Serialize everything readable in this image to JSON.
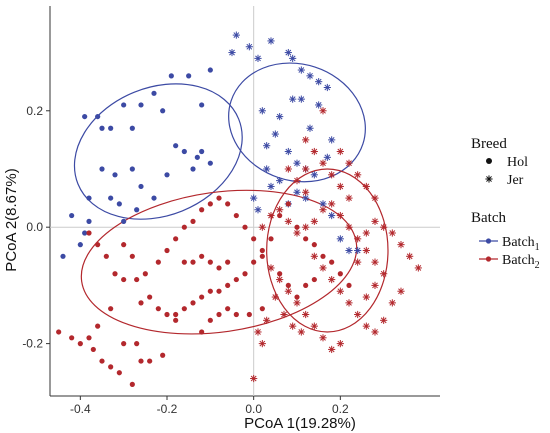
{
  "chart_data": {
    "type": "scatter",
    "title": "",
    "xlabel": "PCoA 1(19.28%)",
    "ylabel": "PCoA 2(8.67%)",
    "xlim": [
      -0.47,
      0.43
    ],
    "ylim": [
      -0.29,
      0.38
    ],
    "xticks": [
      -0.4,
      -0.2,
      0.0,
      0.2
    ],
    "yticks": [
      -0.2,
      0.0,
      0.2
    ],
    "xtick_labels": [
      "-0.4",
      "-0.2",
      "0.0",
      "0.2"
    ],
    "ytick_labels": [
      "-0.2",
      "0.0",
      "0.2"
    ],
    "grid": false,
    "reference_lines": {
      "x": 0.0,
      "y": 0.0
    },
    "legend_breed": {
      "title": "Breed",
      "items": [
        {
          "label": "Hol",
          "shape": "circle"
        },
        {
          "label": "Jer",
          "shape": "asterisk"
        }
      ]
    },
    "legend_batch": {
      "title": "Batch",
      "items": [
        {
          "label": "Batch",
          "subscript": "1",
          "color": "#3c4aa4"
        },
        {
          "label": "Batch",
          "subscript": "2",
          "color": "#b3282d"
        }
      ]
    },
    "series": [
      {
        "batch": "Batch1",
        "breed": "Hol",
        "color": "#3c4aa4",
        "points": [
          [
            -0.36,
            0.19
          ],
          [
            -0.39,
            0.19
          ],
          [
            -0.35,
            0.17
          ],
          [
            -0.33,
            0.17
          ],
          [
            -0.3,
            0.21
          ],
          [
            -0.28,
            0.17
          ],
          [
            -0.26,
            0.21
          ],
          [
            -0.23,
            0.23
          ],
          [
            -0.21,
            0.2
          ],
          [
            -0.19,
            0.26
          ],
          [
            -0.15,
            0.26
          ],
          [
            -0.12,
            0.21
          ],
          [
            -0.1,
            0.27
          ],
          [
            -0.18,
            0.14
          ],
          [
            -0.16,
            0.13
          ],
          [
            -0.13,
            0.12
          ],
          [
            -0.14,
            0.1
          ],
          [
            -0.28,
            0.1
          ],
          [
            -0.35,
            0.1
          ],
          [
            -0.32,
            0.09
          ],
          [
            -0.26,
            0.07
          ],
          [
            -0.23,
            0.05
          ],
          [
            -0.33,
            0.05
          ],
          [
            -0.31,
            0.04
          ],
          [
            -0.27,
            0.03
          ],
          [
            -0.38,
            0.05
          ],
          [
            -0.42,
            0.02
          ],
          [
            -0.38,
            0.01
          ],
          [
            -0.39,
            -0.01
          ],
          [
            -0.4,
            -0.03
          ],
          [
            -0.44,
            -0.05
          ],
          [
            -0.1,
            0.11
          ],
          [
            -0.12,
            0.13
          ],
          [
            -0.2,
            0.09
          ],
          [
            -0.3,
            0.01
          ]
        ]
      },
      {
        "batch": "Batch1",
        "breed": "Jer",
        "color": "#3c4aa4",
        "points": [
          [
            -0.05,
            0.3
          ],
          [
            -0.04,
            0.33
          ],
          [
            -0.01,
            0.31
          ],
          [
            0.01,
            0.29
          ],
          [
            0.04,
            0.32
          ],
          [
            0.08,
            0.3
          ],
          [
            0.09,
            0.29
          ],
          [
            0.11,
            0.27
          ],
          [
            0.13,
            0.26
          ],
          [
            0.15,
            0.25
          ],
          [
            0.17,
            0.24
          ],
          [
            0.09,
            0.22
          ],
          [
            0.11,
            0.22
          ],
          [
            0.15,
            0.21
          ],
          [
            0.02,
            0.2
          ],
          [
            0.06,
            0.19
          ],
          [
            0.05,
            0.16
          ],
          [
            0.03,
            0.14
          ],
          [
            0.13,
            0.17
          ],
          [
            0.18,
            0.15
          ],
          [
            0.17,
            0.12
          ],
          [
            0.08,
            0.13
          ],
          [
            0.1,
            0.11
          ],
          [
            0.12,
            0.1
          ],
          [
            0.14,
            0.09
          ],
          [
            0.06,
            0.08
          ],
          [
            0.04,
            0.07
          ],
          [
            0.1,
            0.06
          ],
          [
            0.12,
            0.05
          ],
          [
            0.08,
            0.04
          ],
          [
            0.16,
            0.04
          ],
          [
            0.18,
            0.02
          ],
          [
            0.2,
            -0.02
          ],
          [
            0.22,
            -0.04
          ],
          [
            0.24,
            -0.04
          ],
          [
            -0.0,
            0.05
          ],
          [
            0.01,
            0.03
          ],
          [
            0.03,
            0.1
          ]
        ]
      },
      {
        "batch": "Batch2",
        "breed": "Hol",
        "color": "#b3282d",
        "points": [
          [
            -0.38,
            -0.01
          ],
          [
            -0.36,
            -0.03
          ],
          [
            -0.34,
            -0.05
          ],
          [
            -0.32,
            -0.08
          ],
          [
            -0.3,
            -0.09
          ],
          [
            -0.27,
            -0.09
          ],
          [
            -0.25,
            -0.08
          ],
          [
            -0.22,
            -0.06
          ],
          [
            -0.2,
            -0.04
          ],
          [
            -0.18,
            -0.02
          ],
          [
            -0.16,
            -0.0
          ],
          [
            -0.14,
            0.01
          ],
          [
            -0.12,
            0.03
          ],
          [
            -0.1,
            0.04
          ],
          [
            -0.08,
            0.05
          ],
          [
            -0.06,
            0.04
          ],
          [
            -0.04,
            0.02
          ],
          [
            -0.02,
            -0.0
          ],
          [
            0.0,
            -0.02
          ],
          [
            0.02,
            -0.04
          ],
          [
            -0.26,
            -0.13
          ],
          [
            -0.24,
            -0.12
          ],
          [
            -0.22,
            -0.14
          ],
          [
            -0.2,
            -0.15
          ],
          [
            -0.18,
            -0.15
          ],
          [
            -0.16,
            -0.14
          ],
          [
            -0.14,
            -0.13
          ],
          [
            -0.12,
            -0.12
          ],
          [
            -0.1,
            -0.11
          ],
          [
            -0.08,
            -0.11
          ],
          [
            -0.06,
            -0.1
          ],
          [
            -0.04,
            -0.09
          ],
          [
            -0.02,
            -0.08
          ],
          [
            0.0,
            -0.06
          ],
          [
            0.02,
            -0.05
          ],
          [
            -0.28,
            -0.05
          ],
          [
            -0.3,
            -0.03
          ],
          [
            -0.33,
            -0.14
          ],
          [
            -0.36,
            -0.17
          ],
          [
            -0.38,
            -0.19
          ],
          [
            -0.3,
            -0.2
          ],
          [
            -0.27,
            -0.2
          ],
          [
            -0.35,
            -0.23
          ],
          [
            -0.31,
            -0.25
          ],
          [
            -0.26,
            -0.23
          ],
          [
            -0.24,
            -0.23
          ],
          [
            -0.28,
            -0.27
          ],
          [
            -0.21,
            -0.22
          ],
          [
            -0.18,
            -0.16
          ],
          [
            -0.12,
            -0.18
          ],
          [
            -0.1,
            -0.16
          ],
          [
            -0.08,
            -0.15
          ],
          [
            -0.06,
            -0.14
          ],
          [
            -0.04,
            -0.15
          ],
          [
            -0.01,
            -0.15
          ],
          [
            0.02,
            -0.14
          ],
          [
            -0.16,
            -0.06
          ],
          [
            -0.14,
            -0.06
          ],
          [
            -0.12,
            -0.05
          ],
          [
            -0.1,
            -0.06
          ],
          [
            -0.08,
            -0.07
          ],
          [
            -0.06,
            -0.06
          ],
          [
            0.04,
            -0.02
          ],
          [
            0.06,
            0.02
          ],
          [
            0.08,
            0.04
          ],
          [
            0.1,
            0.0
          ],
          [
            0.12,
            -0.02
          ],
          [
            0.14,
            -0.03
          ],
          [
            0.16,
            -0.05
          ],
          [
            0.18,
            -0.06
          ],
          [
            0.06,
            -0.08
          ],
          [
            0.08,
            -0.1
          ],
          [
            0.1,
            -0.12
          ],
          [
            0.12,
            -0.1
          ],
          [
            0.14,
            -0.09
          ],
          [
            0.2,
            -0.08
          ],
          [
            0.22,
            -0.1
          ],
          [
            -0.45,
            -0.18
          ],
          [
            -0.42,
            -0.19
          ],
          [
            -0.4,
            -0.2
          ],
          [
            -0.37,
            -0.21
          ],
          [
            -0.33,
            -0.24
          ]
        ]
      },
      {
        "batch": "Batch2",
        "breed": "Jer",
        "color": "#b3282d",
        "points": [
          [
            0.02,
            0.0
          ],
          [
            0.04,
            0.02
          ],
          [
            0.06,
            0.03
          ],
          [
            0.08,
            0.01
          ],
          [
            0.1,
            -0.01
          ],
          [
            0.12,
            -0.0
          ],
          [
            0.14,
            0.01
          ],
          [
            0.16,
            0.03
          ],
          [
            0.18,
            0.04
          ],
          [
            0.2,
            0.02
          ],
          [
            0.22,
            0.0
          ],
          [
            0.24,
            -0.02
          ],
          [
            0.26,
            -0.01
          ],
          [
            0.28,
            0.01
          ],
          [
            0.3,
            0.0
          ],
          [
            0.32,
            -0.01
          ],
          [
            0.34,
            -0.03
          ],
          [
            0.36,
            -0.05
          ],
          [
            0.38,
            -0.07
          ],
          [
            0.22,
            0.05
          ],
          [
            0.2,
            0.07
          ],
          [
            0.18,
            0.09
          ],
          [
            0.16,
            0.11
          ],
          [
            0.14,
            0.13
          ],
          [
            0.12,
            0.15
          ],
          [
            0.2,
            0.13
          ],
          [
            0.22,
            0.11
          ],
          [
            0.24,
            0.09
          ],
          [
            0.26,
            0.07
          ],
          [
            0.28,
            0.05
          ],
          [
            0.14,
            -0.05
          ],
          [
            0.16,
            -0.07
          ],
          [
            0.18,
            -0.09
          ],
          [
            0.2,
            -0.11
          ],
          [
            0.22,
            -0.13
          ],
          [
            0.24,
            -0.15
          ],
          [
            0.26,
            -0.17
          ],
          [
            0.28,
            -0.18
          ],
          [
            0.3,
            -0.16
          ],
          [
            0.32,
            -0.13
          ],
          [
            0.34,
            -0.11
          ],
          [
            0.04,
            -0.07
          ],
          [
            0.06,
            -0.09
          ],
          [
            0.08,
            -0.11
          ],
          [
            0.1,
            -0.13
          ],
          [
            0.12,
            -0.15
          ],
          [
            0.14,
            -0.17
          ],
          [
            0.16,
            -0.19
          ],
          [
            0.18,
            -0.21
          ],
          [
            0.2,
            -0.2
          ],
          [
            0.05,
            -0.12
          ],
          [
            0.07,
            -0.15
          ],
          [
            0.09,
            -0.17
          ],
          [
            0.11,
            -0.18
          ],
          [
            0.03,
            -0.16
          ],
          [
            0.01,
            -0.18
          ],
          [
            0.0,
            -0.26
          ],
          [
            0.02,
            -0.2
          ],
          [
            0.26,
            -0.12
          ],
          [
            0.28,
            -0.1
          ],
          [
            0.3,
            -0.08
          ],
          [
            0.24,
            -0.06
          ],
          [
            0.26,
            -0.04
          ],
          [
            0.28,
            -0.06
          ],
          [
            0.12,
            0.06
          ],
          [
            0.1,
            0.08
          ],
          [
            0.08,
            0.1
          ],
          [
            0.16,
            0.2
          ],
          [
            0.12,
            0.1
          ]
        ]
      }
    ],
    "ellipses": [
      {
        "batch": "Batch1",
        "breed": "Hol",
        "color": "#3c4aa4",
        "center": [
          -0.22,
          0.13
        ],
        "semi_axes": [
          0.2,
          0.11
        ],
        "angle_deg": 22
      },
      {
        "batch": "Batch1",
        "breed": "Jer",
        "color": "#3c4aa4",
        "center": [
          0.1,
          0.18
        ],
        "semi_axes": [
          0.16,
          0.1
        ],
        "angle_deg": -18
      },
      {
        "batch": "Batch2",
        "breed": "Hol",
        "color": "#b3282d",
        "center": [
          -0.08,
          -0.06
        ],
        "semi_axes": [
          0.32,
          0.12
        ],
        "angle_deg": 8
      },
      {
        "batch": "Batch2",
        "breed": "Jer",
        "color": "#b3282d",
        "center": [
          0.17,
          -0.04
        ],
        "semi_axes": [
          0.14,
          0.14
        ],
        "angle_deg": 0
      }
    ]
  }
}
